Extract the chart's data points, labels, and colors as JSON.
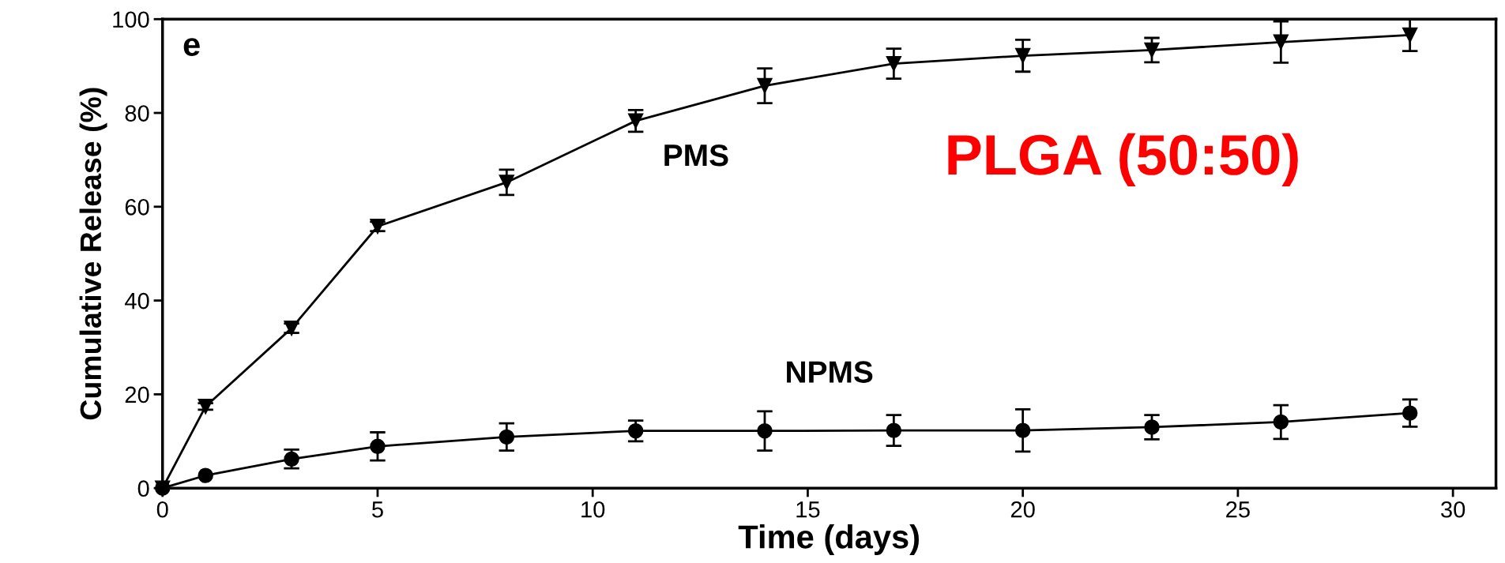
{
  "chart_data": {
    "type": "line",
    "xlabel": "Time (days)",
    "ylabel": "Cumulative Release (%)",
    "xlim": [
      0,
      31
    ],
    "ylim": [
      0,
      100
    ],
    "xticks": [
      0,
      5,
      10,
      15,
      20,
      25,
      30
    ],
    "yticks": [
      0,
      20,
      40,
      60,
      80,
      100
    ],
    "grid": false,
    "legend": false,
    "line_style": "solid",
    "series": [
      {
        "color": "#000000",
        "marker": "triangle",
        "x": [
          0,
          1,
          3,
          5,
          8,
          11,
          14,
          17,
          20,
          23,
          26,
          29
        ],
        "values": [
          0,
          17.4,
          34.1,
          55.8,
          65.2,
          78.3,
          85.8,
          90.5,
          92.2,
          93.4,
          95.1,
          96.6
        ],
        "errors": [
          null,
          0.7,
          1,
          1,
          2.7,
          2.3,
          3.7,
          3.2,
          3.4,
          2.6,
          4.4,
          3.4
        ]
      },
      {
        "color": "#000000",
        "marker": "circle",
        "x": [
          0,
          1,
          3,
          5,
          8,
          11,
          14,
          17,
          20,
          23,
          26,
          29
        ],
        "values": [
          0,
          2.7,
          6.2,
          8.9,
          10.9,
          12.2,
          12.2,
          12.3,
          12.3,
          13.0,
          14.1,
          16.0
        ],
        "errors": [
          null,
          null,
          2,
          3,
          2.9,
          2.2,
          4.2,
          3.3,
          4.5,
          2.6,
          3.6,
          2.9
        ]
      }
    ],
    "annotations": [
      "PMS",
      "NPMS",
      "e",
      "PLGA (50:50)"
    ]
  }
}
